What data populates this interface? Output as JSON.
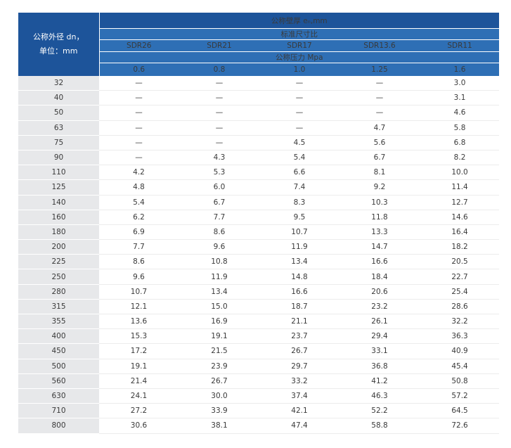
{
  "header": {
    "corner_line1": "公称外径 dn，",
    "corner_line2": "单位：mm",
    "wall_thickness": "公称壁厚 eₙ,mm",
    "sdr_title": "标准尺寸比",
    "sdr_values": [
      "SDR26",
      "SDR21",
      "SDR17",
      "SDR13.6",
      "SDR11"
    ],
    "pressure_title": "公称压力 Mpa",
    "pressures": [
      "0.6",
      "0.8",
      "1.0",
      "1.25",
      "1.6"
    ]
  },
  "rows": [
    {
      "dn": "32",
      "values": [
        "—",
        "—",
        "—",
        "—",
        "3.0"
      ]
    },
    {
      "dn": "40",
      "values": [
        "—",
        "—",
        "—",
        "—",
        "3.1"
      ]
    },
    {
      "dn": "50",
      "values": [
        "—",
        "—",
        "—",
        "—",
        "4.6"
      ]
    },
    {
      "dn": "63",
      "values": [
        "—",
        "—",
        "—",
        "4.7",
        "5.8"
      ]
    },
    {
      "dn": "75",
      "values": [
        "—",
        "—",
        "4.5",
        "5.6",
        "6.8"
      ]
    },
    {
      "dn": "90",
      "values": [
        "—",
        "4.3",
        "5.4",
        "6.7",
        "8.2"
      ]
    },
    {
      "dn": "110",
      "values": [
        "4.2",
        "5.3",
        "6.6",
        "8.1",
        "10.0"
      ]
    },
    {
      "dn": "125",
      "values": [
        "4.8",
        "6.0",
        "7.4",
        "9.2",
        "11.4"
      ]
    },
    {
      "dn": "140",
      "values": [
        "5.4",
        "6.7",
        "8.3",
        "10.3",
        "12.7"
      ]
    },
    {
      "dn": "160",
      "values": [
        "6.2",
        "7.7",
        "9.5",
        "11.8",
        "14.6"
      ]
    },
    {
      "dn": "180",
      "values": [
        "6.9",
        "8.6",
        "10.7",
        "13.3",
        "16.4"
      ]
    },
    {
      "dn": "200",
      "values": [
        "7.7",
        "9.6",
        "11.9",
        "14.7",
        "18.2"
      ]
    },
    {
      "dn": "225",
      "values": [
        "8.6",
        "10.8",
        "13.4",
        "16.6",
        "20.5"
      ]
    },
    {
      "dn": "250",
      "values": [
        "9.6",
        "11.9",
        "14.8",
        "18.4",
        "22.7"
      ]
    },
    {
      "dn": "280",
      "values": [
        "10.7",
        "13.4",
        "16.6",
        "20.6",
        "25.4"
      ]
    },
    {
      "dn": "315",
      "values": [
        "12.1",
        "15.0",
        "18.7",
        "23.2",
        "28.6"
      ]
    },
    {
      "dn": "355",
      "values": [
        "13.6",
        "16.9",
        "21.1",
        "26.1",
        "32.2"
      ]
    },
    {
      "dn": "400",
      "values": [
        "15.3",
        "19.1",
        "23.7",
        "29.4",
        "36.3"
      ]
    },
    {
      "dn": "450",
      "values": [
        "17.2",
        "21.5",
        "26.7",
        "33.1",
        "40.9"
      ]
    },
    {
      "dn": "500",
      "values": [
        "19.1",
        "23.9",
        "29.7",
        "36.8",
        "45.4"
      ]
    },
    {
      "dn": "560",
      "values": [
        "21.4",
        "26.7",
        "33.2",
        "41.2",
        "50.8"
      ]
    },
    {
      "dn": "630",
      "values": [
        "24.1",
        "30.0",
        "37.4",
        "46.3",
        "57.2"
      ]
    },
    {
      "dn": "710",
      "values": [
        "27.2",
        "33.9",
        "42.1",
        "52.2",
        "64.5"
      ]
    },
    {
      "dn": "800",
      "values": [
        "30.6",
        "38.1",
        "47.4",
        "58.8",
        "72.6"
      ]
    }
  ]
}
